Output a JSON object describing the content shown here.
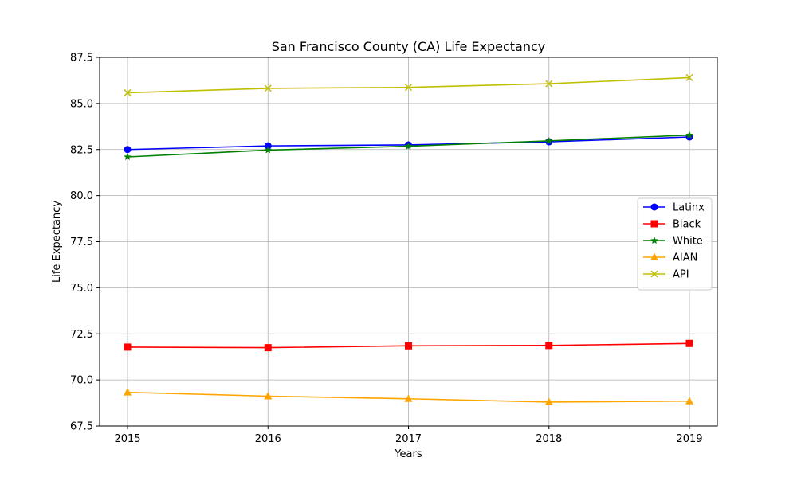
{
  "chart_data": {
    "type": "line",
    "title": "San Francisco County (CA) Life Expectancy",
    "xlabel": "Years",
    "ylabel": "Life Expectancy",
    "x": [
      2015,
      2016,
      2017,
      2018,
      2019
    ],
    "x_tick_labels": [
      "2015",
      "2016",
      "2017",
      "2018",
      "2019"
    ],
    "ylim": [
      67.5,
      87.5
    ],
    "y_ticks": [
      67.5,
      70.0,
      72.5,
      75.0,
      77.5,
      80.0,
      82.5,
      85.0,
      87.5
    ],
    "y_tick_labels": [
      "67.5",
      "70.0",
      "72.5",
      "75.0",
      "77.5",
      "80.0",
      "82.5",
      "85.0",
      "87.5"
    ],
    "grid": true,
    "legend_position": "center-right",
    "series": [
      {
        "name": "Latinx",
        "color": "#0000ff",
        "marker": "circle",
        "values": [
          82.5,
          82.7,
          82.75,
          82.92,
          83.18
        ]
      },
      {
        "name": "Black",
        "color": "#ff0000",
        "marker": "square",
        "values": [
          71.78,
          71.75,
          71.85,
          71.87,
          71.98
        ]
      },
      {
        "name": "White",
        "color": "#008000",
        "marker": "star",
        "values": [
          82.1,
          82.47,
          82.68,
          82.97,
          83.28
        ]
      },
      {
        "name": "AIAN",
        "color": "#ffa500",
        "marker": "triangle",
        "values": [
          69.33,
          69.12,
          68.98,
          68.8,
          68.85
        ]
      },
      {
        "name": "API",
        "color": "#bfbf00",
        "marker": "x",
        "values": [
          85.58,
          85.82,
          85.87,
          86.07,
          86.4
        ]
      }
    ]
  }
}
